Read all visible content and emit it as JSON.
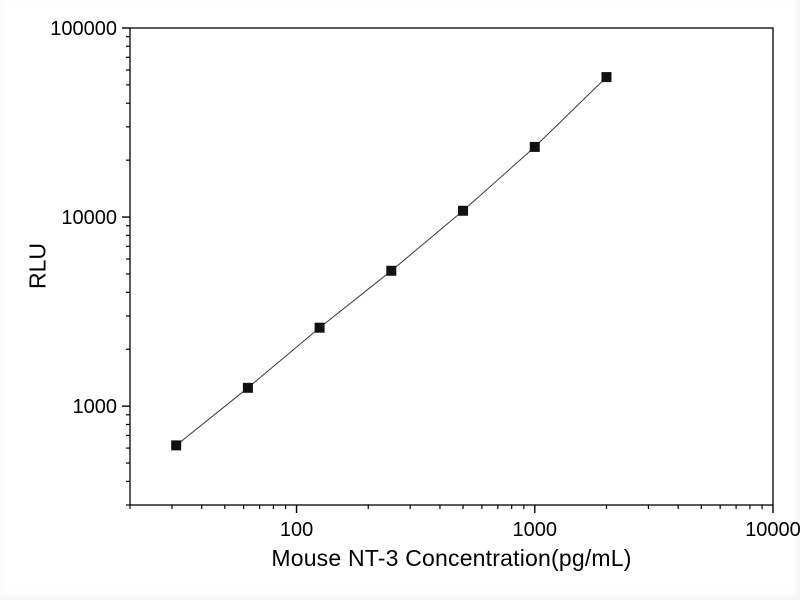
{
  "chart_data": {
    "type": "scatter",
    "title": "",
    "xlabel": "Mouse NT-3 Concentration(pg/mL)",
    "ylabel": "RLU",
    "x_scale": "log",
    "y_scale": "log",
    "xlim": [
      20,
      10000
    ],
    "ylim": [
      300,
      100000
    ],
    "x_ticks": [
      100,
      1000,
      10000
    ],
    "y_ticks": [
      1000,
      10000,
      100000
    ],
    "x": [
      31.25,
      62.5,
      125,
      250,
      500,
      1000,
      2000
    ],
    "y": [
      620,
      1250,
      2600,
      5200,
      10800,
      23500,
      55000
    ],
    "marker": "square",
    "marker_color": "#111111",
    "line_color": "#3a3a3a",
    "axis_color": "#000000",
    "grid": false,
    "legend": false
  }
}
